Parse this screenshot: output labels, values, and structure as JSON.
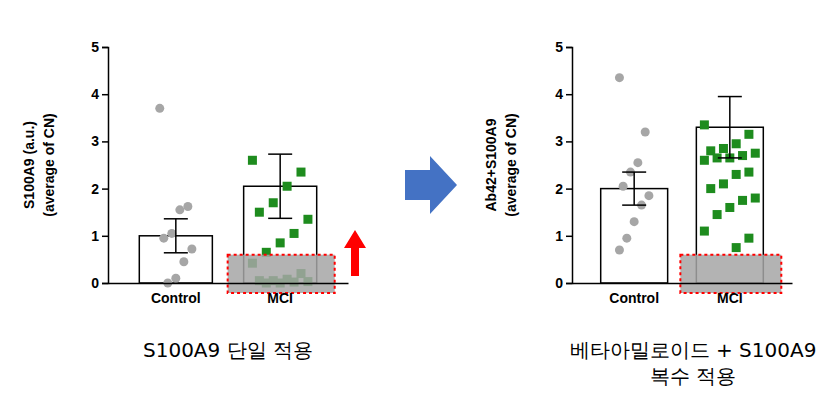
{
  "chart_data": [
    {
      "type": "bar",
      "ylabel": [
        "S100A9 (a.u.)",
        "(average of CN)"
      ],
      "caption": [
        "S100A9 단일 적용"
      ],
      "categories": [
        "Control",
        "MCI"
      ],
      "values": [
        1.0,
        2.05
      ],
      "errors": [
        0.36,
        0.68
      ],
      "points": [
        [
          3.7,
          1.62,
          1.55,
          1.05,
          0.95,
          0.72,
          0.45,
          0.1,
          0.0
        ],
        [
          2.6,
          2.35,
          2.05,
          1.7,
          1.5,
          1.35,
          1.05,
          0.85,
          0.65,
          0.42,
          0.2,
          0.08,
          0.05,
          0.05,
          0.03,
          0.02,
          0.0,
          0.0
        ]
      ],
      "color": "#ffffff",
      "colors": [
        "#a6a6a6",
        "#1e8c1e"
      ],
      "ylim": [
        0,
        5
      ],
      "yticks": [
        0,
        1,
        2,
        3,
        4,
        5
      ],
      "highlight_range": [
        0,
        0.6
      ]
    },
    {
      "type": "bar",
      "ylabel": [
        "Ab42+S100A9",
        "(average of CN)"
      ],
      "caption": [
        "베타아밀로이드 + S100A9",
        "복수 적용"
      ],
      "categories": [
        "Control",
        "MCI"
      ],
      "values": [
        2.0,
        3.3
      ],
      "errors": [
        0.35,
        0.65
      ],
      "points": [
        [
          4.35,
          3.2,
          2.55,
          2.35,
          2.05,
          1.85,
          1.65,
          1.3,
          0.95,
          0.7
        ],
        [
          3.35,
          3.15,
          2.95,
          2.85,
          2.8,
          2.75,
          2.7,
          2.65,
          2.65,
          2.6,
          2.35,
          2.3,
          2.1,
          2.0,
          1.8,
          1.75,
          1.6,
          1.45,
          1.1,
          0.95,
          0.75
        ]
      ],
      "color": "#ffffff",
      "colors": [
        "#a6a6a6",
        "#1e8c1e"
      ],
      "ylim": [
        0,
        5
      ],
      "yticks": [
        0,
        1,
        2,
        3,
        4,
        5
      ],
      "highlight_range": [
        0,
        0.6
      ]
    }
  ]
}
